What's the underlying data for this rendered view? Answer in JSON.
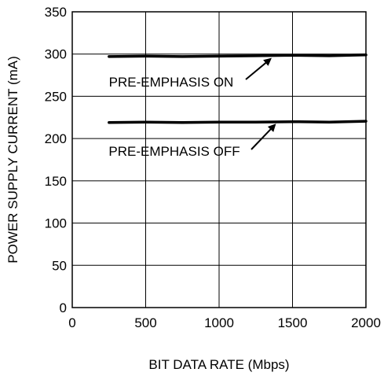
{
  "chart_data": {
    "type": "line",
    "title": "",
    "xlabel": "BIT DATA RATE (Mbps)",
    "ylabel": "POWER SUPPLY CURRENT (mA)",
    "xlim": [
      0,
      2000
    ],
    "ylim": [
      0,
      350
    ],
    "x_ticks": [
      0,
      500,
      1000,
      1500,
      2000
    ],
    "y_ticks": [
      0,
      50,
      100,
      150,
      200,
      250,
      300,
      350
    ],
    "grid": true,
    "legend": "none",
    "line_color": "#000000",
    "series": [
      {
        "x": [
          250,
          500,
          750,
          1000,
          1250,
          1500,
          1750,
          2000
        ],
        "y": [
          297,
          297.5,
          297,
          297.5,
          298,
          298.5,
          298,
          299
        ]
      },
      {
        "x": [
          250,
          500,
          750,
          1000,
          1250,
          1500,
          1750,
          2000
        ],
        "y": [
          219,
          219.5,
          219,
          219.5,
          219.5,
          220,
          219.5,
          220.5
        ]
      }
    ],
    "annotations": [
      {
        "text": "PRE-EMPHASIS ON",
        "target": {
          "x": 1350,
          "y": 297
        },
        "series": 0
      },
      {
        "text": "PRE-EMPHASIS OFF",
        "target": {
          "x": 1380,
          "y": 219
        },
        "series": 1
      }
    ]
  }
}
